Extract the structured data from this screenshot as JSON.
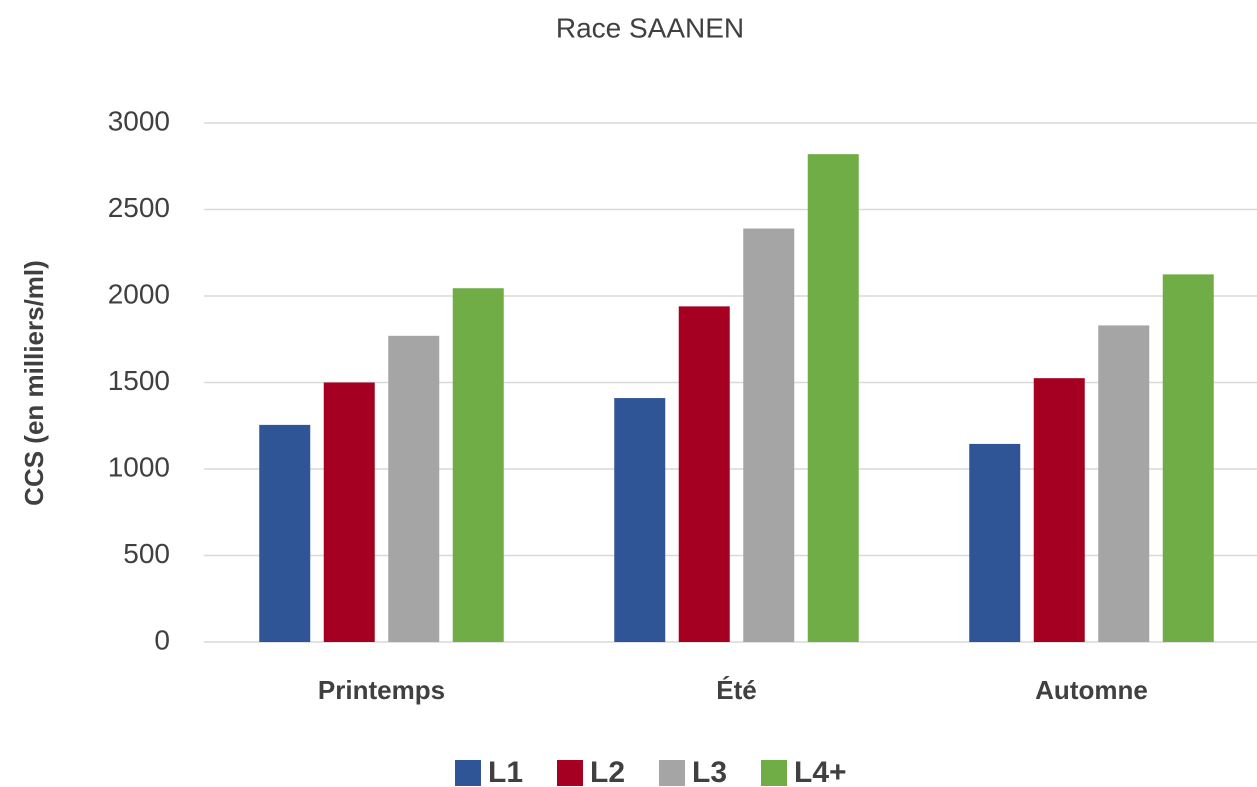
{
  "chart_data": {
    "type": "bar",
    "title": "Race SAANEN",
    "y_label": "CCS (en milliers/ml)",
    "categories": [
      "Printemps",
      "Été",
      "Automne"
    ],
    "series": [
      {
        "name": "L1",
        "color": "#2f5597",
        "values": [
          1255,
          1410,
          1145
        ]
      },
      {
        "name": "L2",
        "color": "#a50021",
        "values": [
          1500,
          1940,
          1525
        ]
      },
      {
        "name": "L3",
        "color": "#a5a5a5",
        "values": [
          1770,
          2390,
          1830
        ]
      },
      {
        "name": "L4+",
        "color": "#70ad47",
        "values": [
          2045,
          2820,
          2125
        ]
      }
    ],
    "ylim": [
      0,
      3000
    ],
    "yticks": [
      0,
      500,
      1000,
      1500,
      2000,
      2500,
      3000
    ],
    "grid": true,
    "legend": "bottom"
  }
}
